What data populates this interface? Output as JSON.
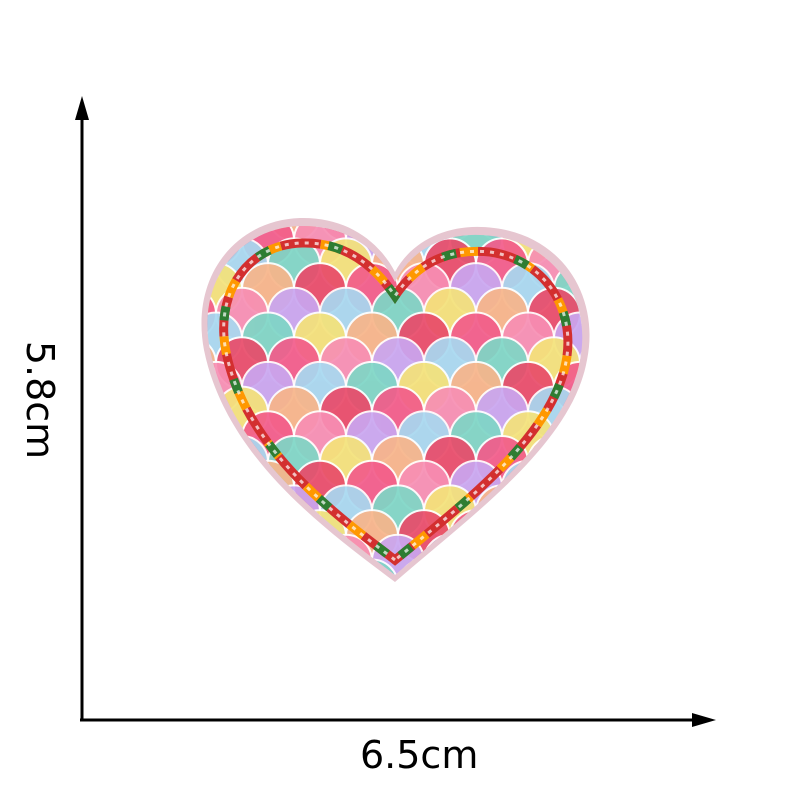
{
  "dimensions": {
    "width_label": "6.5cm",
    "height_label": "5.8cm"
  },
  "product": {
    "icon": "heart-patch-icon",
    "palette": [
      "#f25c8a",
      "#f78fb3",
      "#c9a6f0",
      "#a8d8f0",
      "#7ed6c6",
      "#f4e27a",
      "#f7b58a",
      "#e94b6a"
    ],
    "border_colors": [
      "#d32f2f",
      "#ff9800",
      "#2e7d32",
      "#ffffff"
    ]
  }
}
